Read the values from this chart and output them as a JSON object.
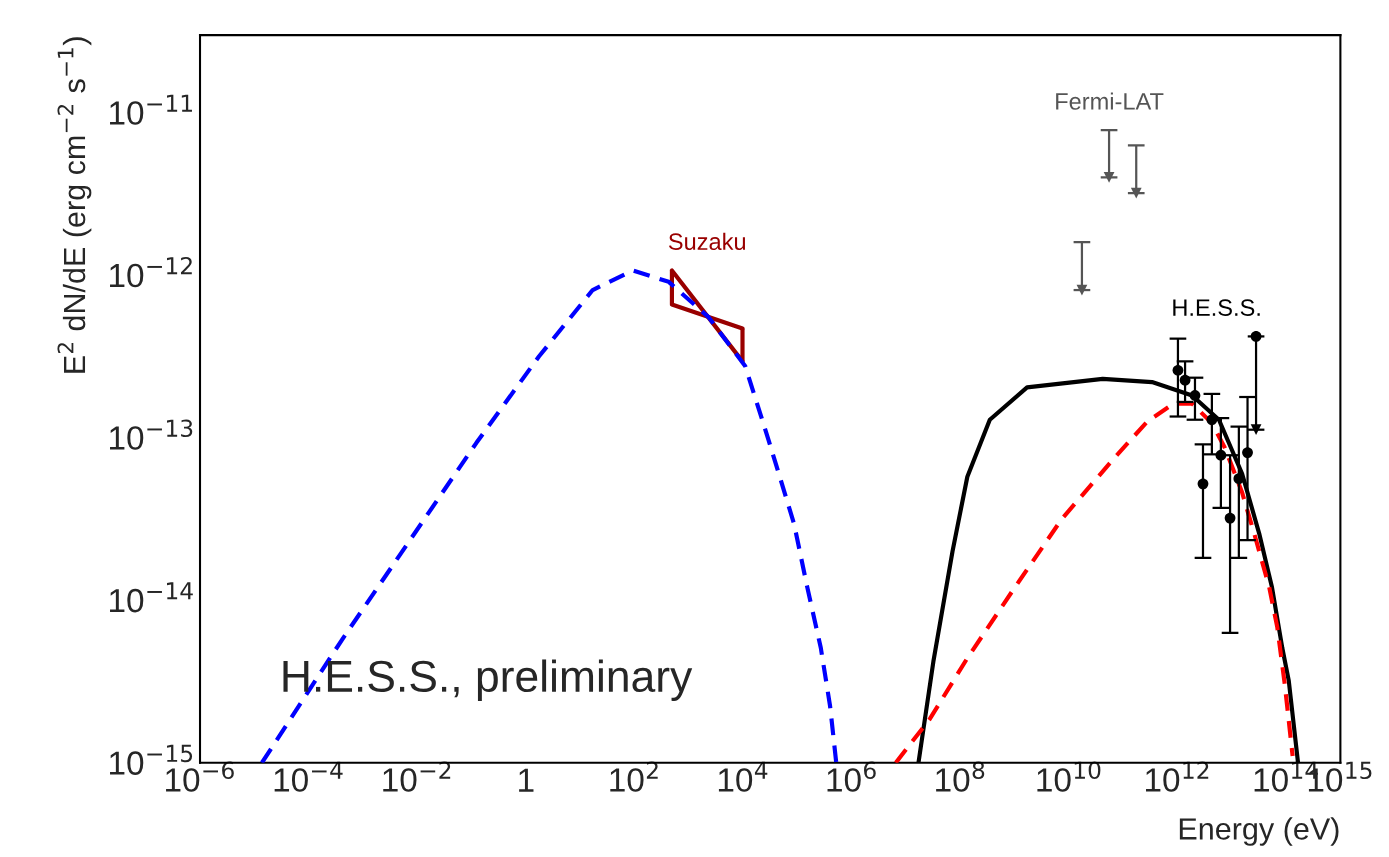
{
  "chart_data": {
    "type": "line",
    "xlabel": "Energy (eV)",
    "ylabel": "E$^{2}$ dN/dE (erg cm$^{−2}$ s$^{−1}$)",
    "log": "xy",
    "grid": false,
    "legend": false,
    "xlim": [
      1e-06,
      1000000000000000.0
    ],
    "ylim": [
      1e-15,
      3e-11
    ],
    "xticks": [
      {
        "value": 1e-06,
        "label": "10$^{−6}$"
      },
      {
        "value": 0.0001,
        "label": "10$^{−4}$"
      },
      {
        "value": 0.01,
        "label": "10$^{−2}$"
      },
      {
        "value": 1,
        "label": "1"
      },
      {
        "value": 100.0,
        "label": "10$^{2}$"
      },
      {
        "value": 10000.0,
        "label": "10$^{4}$"
      },
      {
        "value": 1000000.0,
        "label": "10$^{6}$"
      },
      {
        "value": 100000000.0,
        "label": "10$^{8}$"
      },
      {
        "value": 10000000000.0,
        "label": "10$^{10}$"
      },
      {
        "value": 1000000000000.0,
        "label": "10$^{12}$"
      },
      {
        "value": 100000000000000.0,
        "label": "10$^{14}$"
      },
      {
        "value": 1000000000000000.0,
        "label": "10$^{15}$"
      }
    ],
    "yticks": [
      {
        "value": 1e-15,
        "label": "10$^{−15}$"
      },
      {
        "value": 1e-14,
        "label": "10$^{−14}$"
      },
      {
        "value": 1e-13,
        "label": "10$^{−13}$"
      },
      {
        "value": 1e-12,
        "label": "10$^{−12}$"
      },
      {
        "value": 1e-11,
        "label": "10$^{−11}$"
      }
    ],
    "annotations": [
      "H.E.S.S., preliminary"
    ],
    "series": [
      {
        "color": "#0000ff",
        "line_style": "dashed",
        "x": [
          1.38e-05,
          0.000417,
          0.123,
          1.74,
          17,
          93,
          427,
          2340,
          11000.0,
          30000.0,
          87000.0,
          150000.0,
          270000.0,
          400000.0,
          520000.0
        ],
        "values": [
          1e-15,
          5.75e-15,
          9.3e-14,
          3.16e-13,
          8.1e-13,
          1.07e-12,
          9.1e-13,
          5.5e-13,
          2.75e-13,
          9.5e-14,
          2.95e-14,
          1.23e-14,
          5.1e-15,
          2.24e-15,
          1e-15
        ]
      },
      {
        "color": "#ff0000",
        "line_style": "dashed",
        "x": [
          6500000.0,
          27500000.0,
          135000000.0,
          930000000.0,
          7400000000.0,
          71000000000.0,
          280000000000.0,
          850000000000.0,
          1860000000000.0,
          4300000000000.0,
          7400000000000.0,
          15500000000000.0,
          27000000000000.0,
          49000000000000.0,
          69000000000000.0,
          95000000000000.0,
          132000000000000.0
        ],
        "values": [
          1e-15,
          1.86e-15,
          4.4e-15,
          1.15e-14,
          3.16e-14,
          7.6e-14,
          1.26e-13,
          1.62e-13,
          1.62e-13,
          1.23e-13,
          8.7e-14,
          4.6e-14,
          2.45e-14,
          1.2e-14,
          6.8e-15,
          3e-15,
          1.1e-15
        ]
      },
      {
        "color": "#000000",
        "line_style": "solid",
        "x": [
          17000000.0,
          32000000.0,
          72000000.0,
          135000000.0,
          350000000.0,
          1700000000.0,
          42000000000.0,
          340000000000.0,
          1860000000000.0,
          5800000000000.0,
          15500000000000.0,
          32000000000000.0,
          55000000000000.0,
          85000000000000.0,
          112000000000000.0,
          166000000000000.0
        ],
        "values": [
          1e-15,
          4.2e-15,
          2e-14,
          5.75e-14,
          1.29e-13,
          2.04e-13,
          2.3e-13,
          2.2e-13,
          1.82e-13,
          1.29e-13,
          6e-14,
          2.57e-14,
          1.2e-14,
          5.1e-15,
          3.2e-15,
          1e-15
        ]
      },
      {
        "name": "Suzaku",
        "color": "#990000",
        "line_style": "solid",
        "x": [
          490,
          9770
        ],
        "values": [
          1.07e-12,
          2.95e-13
        ],
        "errors": [
          [
            6.6e-13,
            1.07e-12
          ],
          [
            2.95e-13,
            4.7e-13
          ]
        ]
      },
      {
        "color": "#990000",
        "line_style": "solid",
        "x": [
          490,
          9770
        ],
        "values": [
          6.6e-13,
          4.7e-13
        ]
      },
      {
        "name": "Fermi-LAT",
        "type": "scatter",
        "color": "#555555",
        "marker": "triangle",
        "x": [
          17400000000.0,
          55000000000.0,
          174000000000.0
        ],
        "values": [
          8.1e-13,
          4e-12,
          3.2e-12
        ],
        "errors": [
          [
            8.1e-13,
            1.6e-12
          ],
          [
            4e-12,
            7.8e-12
          ],
          [
            3.2e-12,
            6.3e-12
          ]
        ]
      },
      {
        "name": "H.E.S.S.",
        "type": "scatter",
        "color": "#000000",
        "marker": "circle",
        "x": [
          1020000000000.0,
          1380000000000.0,
          2100000000000.0,
          2950000000000.0,
          4300000000000.0,
          6300000000000.0,
          9300000000000.0,
          13500000000000.0,
          19500000000000.0,
          28000000000000.0
        ],
        "values": [
          2.6e-13,
          2.26e-13,
          1.82e-13,
          5.2e-14,
          1.29e-13,
          7.8e-14,
          3.2e-14,
          5.6e-14,
          8.1e-14,
          4.2e-13
        ],
        "errors": [
          [
            1.35e-13,
            4.07e-13
          ],
          [
            1.66e-13,
            2.95e-13
          ],
          [
            1.29e-13,
            2.34e-13
          ],
          [
            1.82e-14,
            9.1e-14
          ],
          [
            7.9e-14,
            1.86e-13
          ],
          [
            3.7e-14,
            1.32e-13
          ],
          [
            6.3e-15,
            7.8e-14
          ],
          [
            1.82e-14,
            1.17e-13
          ],
          [
            2.34e-14,
            1.78e-13
          ],
          [
            1.12e-13,
            4.2e-13
          ]
        ]
      },
      {
        "type": "scatter",
        "color": "#000000",
        "marker": "triangle",
        "x": [
          28000000000000.0
        ],
        "values": [
          1.12e-13
        ]
      }
    ]
  }
}
